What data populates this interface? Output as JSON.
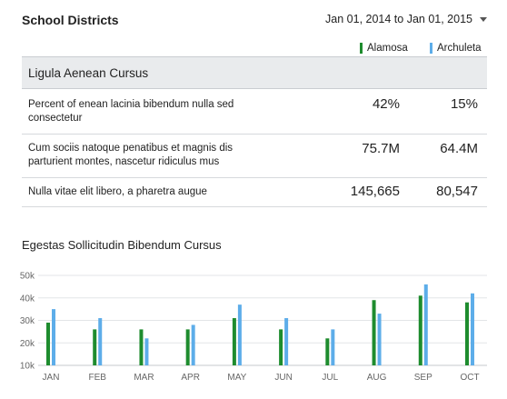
{
  "header": {
    "title": "School Districts",
    "date_range": "Jan 01, 2014 to Jan 01, 2015"
  },
  "colors": {
    "series_a": "#1e8c2e",
    "series_b": "#5dade9"
  },
  "legend": {
    "a": "Alamosa",
    "b": "Archuleta"
  },
  "table": {
    "heading": "Ligula Aenean Cursus",
    "rows": [
      {
        "label": "Percent of enean lacinia bibendum nulla sed consectetur",
        "a": "42%",
        "b": "15%"
      },
      {
        "label": "Cum sociis natoque penatibus et magnis dis parturient montes, nascetur ridiculus mus",
        "a": "75.7M",
        "b": "64.4M"
      },
      {
        "label": "Nulla vitae elit libero, a pharetra augue",
        "a": "145,665",
        "b": "80,547"
      }
    ]
  },
  "chart_data": {
    "type": "bar",
    "title": "Egestas Sollicitudin Bibendum Cursus",
    "categories": [
      "JAN",
      "FEB",
      "MAR",
      "APR",
      "MAY",
      "JUN",
      "JUL",
      "AUG",
      "SEP",
      "OCT"
    ],
    "series": [
      {
        "name": "Alamosa",
        "values": [
          29,
          26,
          26,
          26,
          31,
          26,
          22,
          39,
          41,
          38
        ]
      },
      {
        "name": "Archuleta",
        "values": [
          35,
          31,
          22,
          28,
          37,
          31,
          26,
          33,
          46,
          42
        ]
      }
    ],
    "ylim": [
      10,
      50
    ],
    "yticks": [
      "10k",
      "20k",
      "30k",
      "40k",
      "50k"
    ],
    "grid": true,
    "xlabel": "",
    "ylabel": ""
  }
}
